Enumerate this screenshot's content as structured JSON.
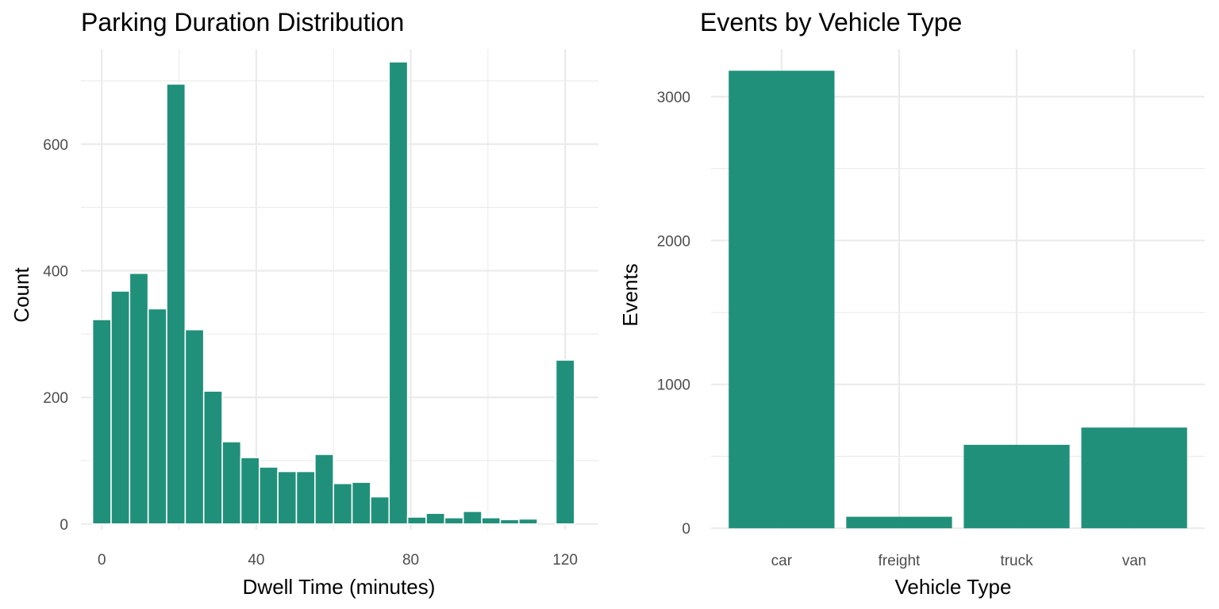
{
  "chart_data": [
    {
      "type": "bar",
      "title": "Parking Duration Distribution",
      "xlabel": "Dwell Time (minutes)",
      "ylabel": "Count",
      "bin_width": 4.8,
      "x": [
        0,
        4.8,
        9.6,
        14.4,
        19.2,
        24,
        28.8,
        33.6,
        38.4,
        43.2,
        48,
        52.8,
        57.6,
        62.4,
        67.2,
        72,
        76.8,
        81.6,
        86.4,
        91.2,
        96,
        100.8,
        105.6,
        110.4,
        115.2,
        120
      ],
      "values": [
        323,
        368,
        396,
        340,
        695,
        307,
        210,
        130,
        105,
        90,
        83,
        83,
        110,
        64,
        66,
        43,
        730,
        11,
        17,
        10,
        20,
        10,
        7,
        8,
        0,
        259
      ],
      "xlim": [
        -5.4,
        128.6
      ],
      "ylim": [
        -9,
        750
      ],
      "x_ticks": [
        "0",
        "40",
        "80",
        "120"
      ],
      "y_ticks": [
        "0",
        "200",
        "400",
        "600"
      ],
      "grid": true,
      "legend": "none",
      "color": "#21907a"
    },
    {
      "type": "bar",
      "title": "Events by Vehicle Type",
      "xlabel": "Vehicle Type",
      "ylabel": "Events",
      "categories": [
        "car",
        "freight",
        "truck",
        "van"
      ],
      "values": [
        3180,
        80,
        580,
        700
      ],
      "ylim": [
        -10,
        3330
      ],
      "y_ticks": [
        "0",
        "1000",
        "2000",
        "3000"
      ],
      "grid": true,
      "legend": "none",
      "color": "#21907a"
    }
  ]
}
